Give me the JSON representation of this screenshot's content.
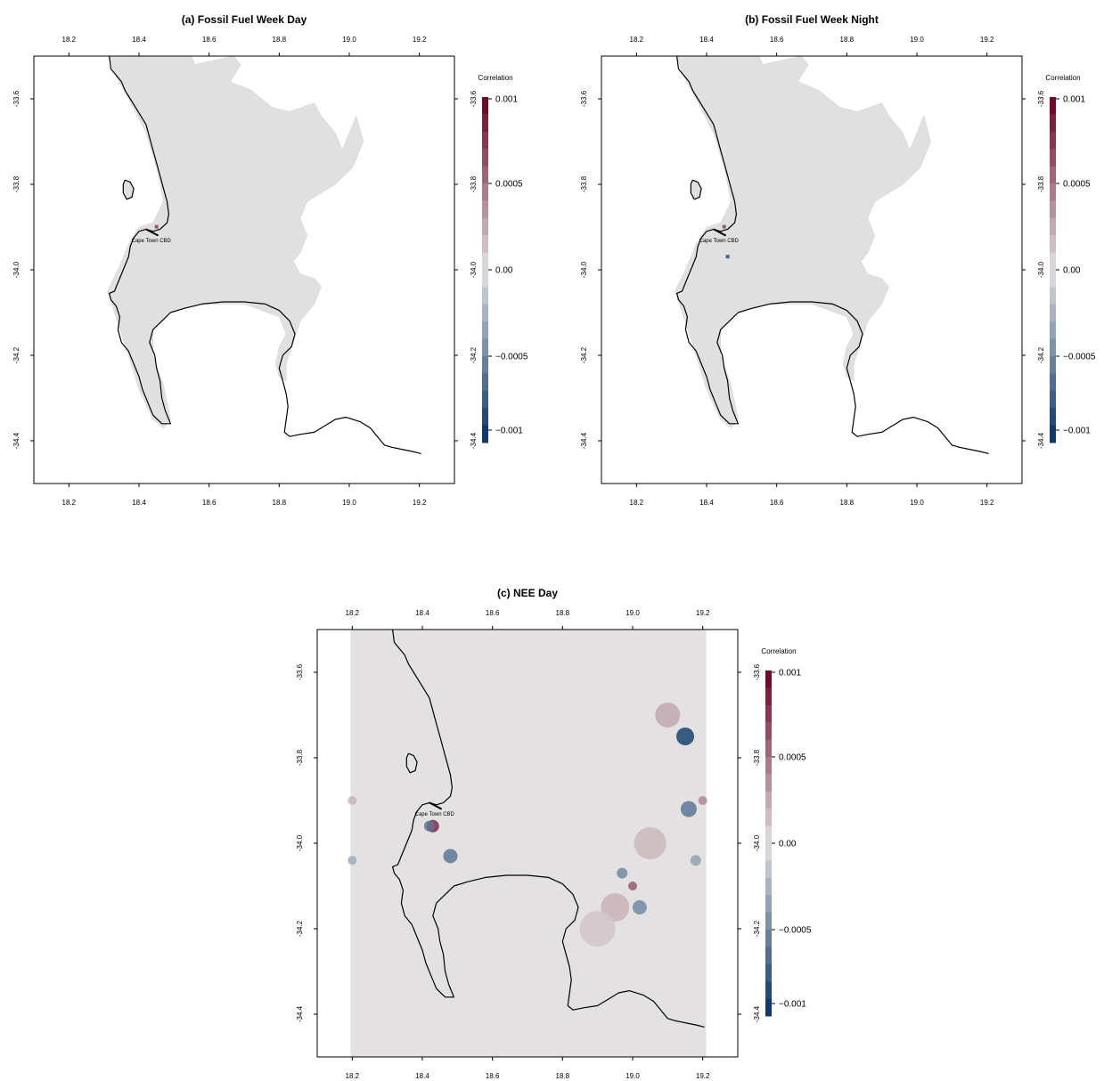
{
  "panels": [
    {
      "id": "a",
      "title": "(a) Fossil Fuel Week Day",
      "x_ticks": [
        "18.2",
        "18.4",
        "18.6",
        "18.8",
        "19.0",
        "19.2"
      ],
      "y_ticks": [
        "-33.6",
        "-33.8",
        "-34.0",
        "-34.2",
        "-34.4"
      ],
      "colorbar_title": "Correlation",
      "colorbar_ticks": [
        "0.001",
        "0.0005",
        "0.00",
        "−0.0005",
        "−0.001"
      ],
      "annotation": "Cape Town CBD",
      "field": "fossil"
    },
    {
      "id": "b",
      "title": "(b) Fossil Fuel Week Night",
      "x_ticks": [
        "18.2",
        "18.4",
        "18.6",
        "18.8",
        "19.0",
        "19.2"
      ],
      "y_ticks": [
        "-33.6",
        "-33.8",
        "-34.0",
        "-34.2",
        "-34.4"
      ],
      "colorbar_title": "Correlation",
      "colorbar_ticks": [
        "0.001",
        "0.0005",
        "0.00",
        "−0.0005",
        "−0.001"
      ],
      "annotation": "Cape Town CBD",
      "field": "fossil"
    },
    {
      "id": "c",
      "title": "(c) NEE Day",
      "x_ticks": [
        "18.2",
        "18.4",
        "18.6",
        "18.8",
        "19.0",
        "19.2"
      ],
      "y_ticks": [
        "-33.6",
        "-33.8",
        "-34.0",
        "-34.2",
        "-34.4"
      ],
      "colorbar_title": "Correlation",
      "colorbar_ticks": [
        "0.001",
        "0.0005",
        "0.00",
        "−0.0005",
        "−0.001"
      ],
      "annotation": "Cape Town CBD",
      "field": "nee"
    }
  ],
  "colors": {
    "positive": "#67001f",
    "neutral": "#e0e0e0",
    "negative": "#053061"
  }
}
